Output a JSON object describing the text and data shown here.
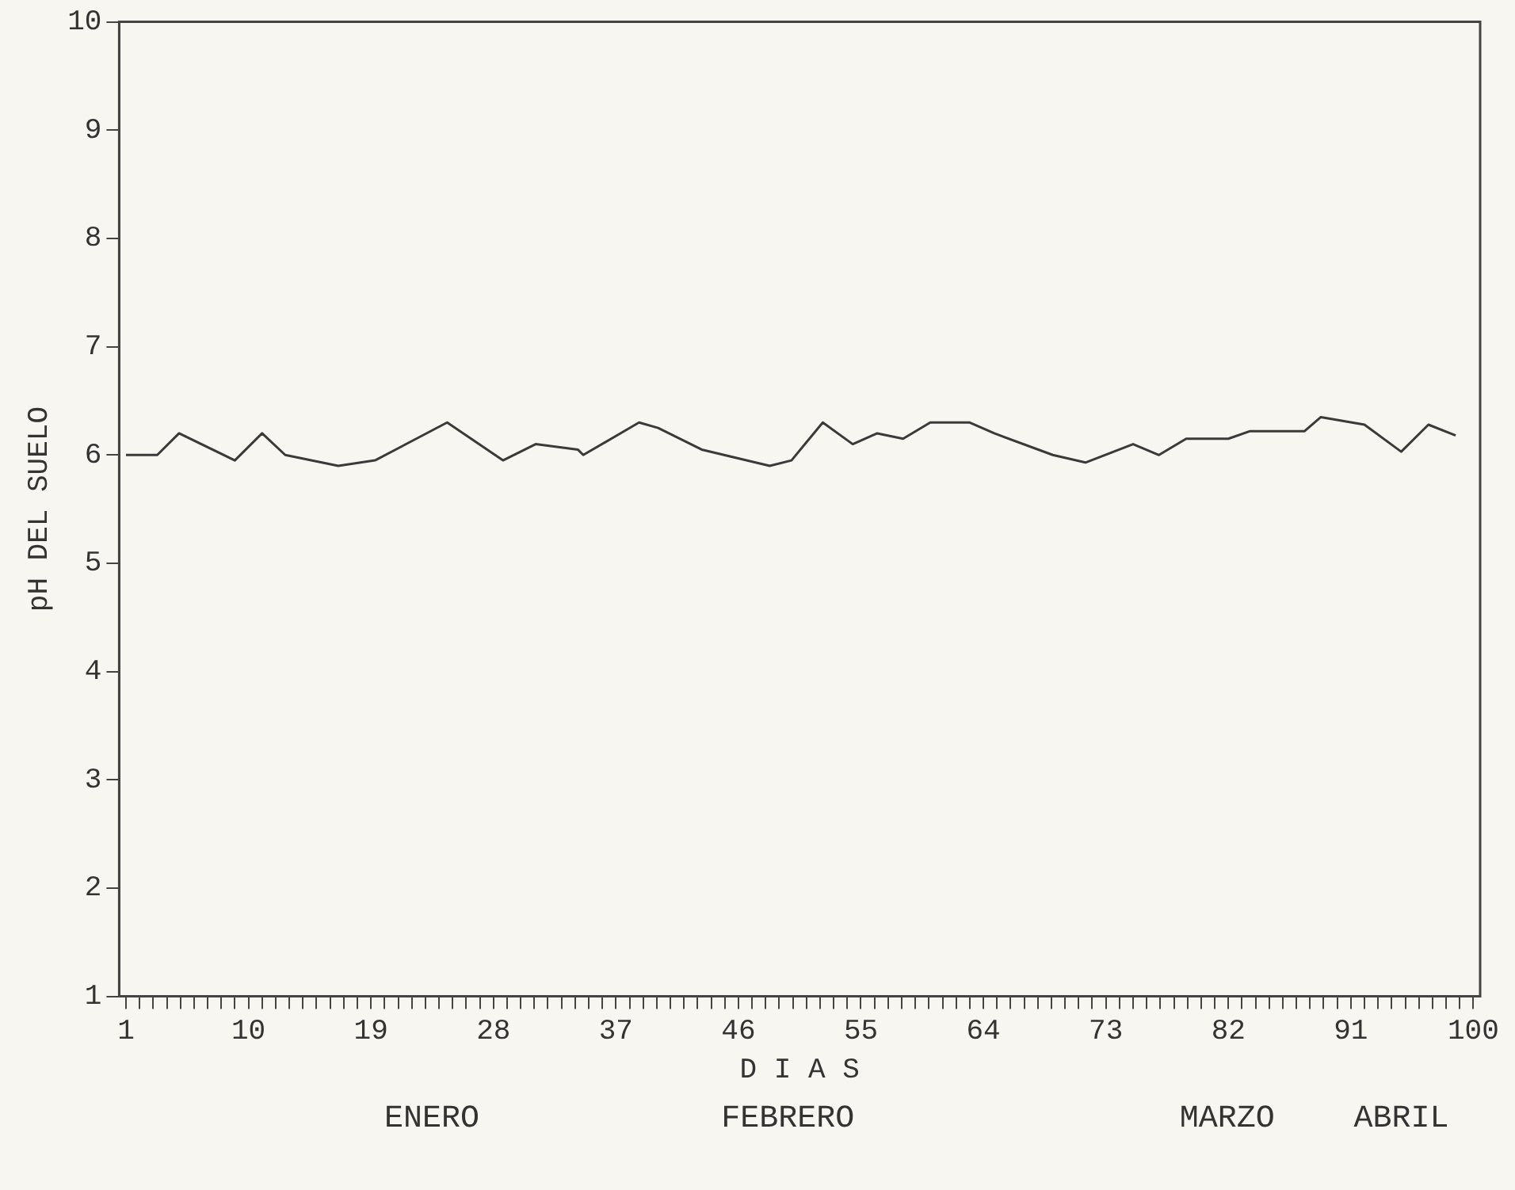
{
  "chart_data": {
    "type": "line",
    "xlabel": "D I A S",
    "ylabel": "pH DEL SUELO",
    "annotations": [
      "ENERO",
      "FEBRERO",
      "MARZO",
      "ABRIL"
    ],
    "x": [
      1,
      3.3,
      4.9,
      9,
      11,
      12.7,
      16.6,
      19.3,
      24.6,
      28.7,
      31.1,
      34.2,
      34.6,
      38.7,
      40.1,
      43.3,
      48.3,
      49.9,
      52.2,
      54.4,
      56.2,
      58.1,
      60.1,
      63,
      64.8,
      69.1,
      71.5,
      75,
      76.9,
      78.9,
      82,
      83.6,
      87.6,
      88.8,
      92,
      94.7,
      96.7,
      98.7
    ],
    "series": [
      {
        "color": "#3a3a3a",
        "values": [
          6.0,
          6.0,
          6.2,
          5.95,
          6.2,
          6.0,
          5.9,
          5.95,
          6.3,
          5.95,
          6.1,
          6.05,
          6.0,
          6.3,
          6.25,
          6.05,
          5.9,
          5.95,
          6.3,
          6.1,
          6.2,
          6.15,
          6.3,
          6.3,
          6.2,
          6.0,
          5.93,
          6.1,
          6.0,
          6.15,
          6.15,
          6.22,
          6.22,
          6.35,
          6.28,
          6.03,
          6.28,
          6.18
        ]
      }
    ],
    "xlim": [
      0.5,
      100.5
    ],
    "ylim": [
      1,
      10
    ],
    "xticks": [
      1,
      {
        "value": 2,
        "label": null
      },
      {
        "value": 3,
        "label": null
      },
      {
        "value": 4,
        "label": null
      },
      {
        "value": 5,
        "label": null
      },
      {
        "value": 6,
        "label": null
      },
      {
        "value": 7,
        "label": null
      },
      {
        "value": 8,
        "label": null
      },
      {
        "value": 9,
        "label": null
      },
      10,
      {
        "value": 11,
        "label": null
      },
      {
        "value": 12,
        "label": null
      },
      {
        "value": 13,
        "label": null
      },
      {
        "value": 14,
        "label": null
      },
      {
        "value": 15,
        "label": null
      },
      {
        "value": 16,
        "label": null
      },
      {
        "value": 17,
        "label": null
      },
      {
        "value": 18,
        "label": null
      },
      19,
      {
        "value": 20,
        "label": null
      },
      {
        "value": 21,
        "label": null
      },
      {
        "value": 22,
        "label": null
      },
      {
        "value": 23,
        "label": null
      },
      {
        "value": 24,
        "label": null
      },
      {
        "value": 25,
        "label": null
      },
      {
        "value": 26,
        "label": null
      },
      {
        "value": 27,
        "label": null
      },
      28,
      {
        "value": 29,
        "label": null
      },
      {
        "value": 30,
        "label": null
      },
      {
        "value": 31,
        "label": null
      },
      {
        "value": 32,
        "label": null
      },
      {
        "value": 33,
        "label": null
      },
      {
        "value": 34,
        "label": null
      },
      {
        "value": 35,
        "label": null
      },
      {
        "value": 36,
        "label": null
      },
      37,
      {
        "value": 38,
        "label": null
      },
      {
        "value": 39,
        "label": null
      },
      {
        "value": 40,
        "label": null
      },
      {
        "value": 41,
        "label": null
      },
      {
        "value": 42,
        "label": null
      },
      {
        "value": 43,
        "label": null
      },
      {
        "value": 44,
        "label": null
      },
      {
        "value": 45,
        "label": null
      },
      46,
      {
        "value": 47,
        "label": null
      },
      {
        "value": 48,
        "label": null
      },
      {
        "value": 49,
        "label": null
      },
      {
        "value": 50,
        "label": null
      },
      {
        "value": 51,
        "label": null
      },
      {
        "value": 52,
        "label": null
      },
      {
        "value": 53,
        "label": null
      },
      {
        "value": 54,
        "label": null
      },
      55,
      {
        "value": 56,
        "label": null
      },
      {
        "value": 57,
        "label": null
      },
      {
        "value": 58,
        "label": null
      },
      {
        "value": 59,
        "label": null
      },
      {
        "value": 60,
        "label": null
      },
      {
        "value": 61,
        "label": null
      },
      {
        "value": 62,
        "label": null
      },
      {
        "value": 63,
        "label": null
      },
      64,
      {
        "value": 65,
        "label": null
      },
      {
        "value": 66,
        "label": null
      },
      {
        "value": 67,
        "label": null
      },
      {
        "value": 68,
        "label": null
      },
      {
        "value": 69,
        "label": null
      },
      {
        "value": 70,
        "label": null
      },
      {
        "value": 71,
        "label": null
      },
      {
        "value": 72,
        "label": null
      },
      73,
      {
        "value": 74,
        "label": null
      },
      {
        "value": 75,
        "label": null
      },
      {
        "value": 76,
        "label": null
      },
      {
        "value": 77,
        "label": null
      },
      {
        "value": 78,
        "label": null
      },
      {
        "value": 79,
        "label": null
      },
      {
        "value": 80,
        "label": null
      },
      {
        "value": 81,
        "label": null
      },
      82,
      {
        "value": 83,
        "label": null
      },
      {
        "value": 84,
        "label": null
      },
      {
        "value": 85,
        "label": null
      },
      {
        "value": 86,
        "label": null
      },
      {
        "value": 87,
        "label": null
      },
      {
        "value": 88,
        "label": null
      },
      {
        "value": 89,
        "label": null
      },
      {
        "value": 90,
        "label": null
      },
      91,
      {
        "value": 92,
        "label": null
      },
      {
        "value": 93,
        "label": null
      },
      {
        "value": 94,
        "label": null
      },
      {
        "value": 95,
        "label": null
      },
      {
        "value": 96,
        "label": null
      },
      {
        "value": 97,
        "label": null
      },
      {
        "value": 98,
        "label": null
      },
      {
        "value": 99,
        "label": null
      },
      100
    ],
    "yticks": [
      1,
      2,
      3,
      4,
      5,
      6,
      7,
      8,
      9,
      10
    ],
    "grid": false,
    "legend": false,
    "marker": "none",
    "line_style": "solid"
  }
}
